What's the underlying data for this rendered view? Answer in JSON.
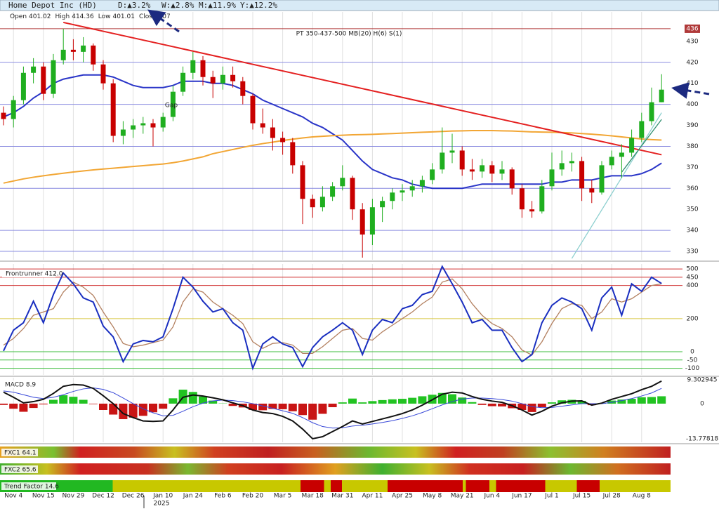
{
  "header": {
    "title": "Home Depot Inc (HD)",
    "changes": [
      "D:▲3.2%",
      "W:▲2.8%",
      "M:▲11.9%",
      "Y:▲12.2%"
    ]
  },
  "strips": [
    "FXC1 64.1",
    "FXC2 65.6",
    "Trend Factor 14.6"
  ],
  "chart_data": [
    {
      "type": "candlestick",
      "categories": [
        null,
        "Nov 4",
        null,
        null,
        "Nov 15",
        null,
        null,
        "Nov 29",
        null,
        null,
        "Dec 12",
        null,
        null,
        "Dec 26",
        null,
        null,
        "Jan 10",
        null,
        null,
        "Jan 24",
        null,
        null,
        "Feb 6",
        null,
        null,
        "Feb 20",
        null,
        null,
        "Mar 5",
        null,
        null,
        "Mar 18",
        null,
        null,
        "Mar 31",
        null,
        null,
        "Apr 11",
        null,
        null,
        "Apr 25",
        null,
        null,
        "May 8",
        null,
        null,
        "May 21",
        null,
        null,
        "Jun 4",
        null,
        null,
        "Jun 17",
        null,
        null,
        "Jul 1",
        null,
        null,
        "Jul 15",
        null,
        null,
        "Jul 28",
        null,
        null,
        "Aug 8",
        null,
        null
      ],
      "year_label": "2025",
      "ohlc_labels": [
        "Open",
        "High",
        "Low",
        "Close"
      ],
      "open": [
        396,
        393,
        402,
        415,
        418,
        405,
        421,
        426,
        425,
        428,
        419,
        410,
        385,
        388,
        390,
        391,
        389,
        394,
        406,
        415,
        421,
        413,
        410,
        414,
        411,
        404,
        391,
        389,
        384,
        382,
        371,
        355,
        351,
        356,
        361,
        365,
        350,
        338,
        351,
        354,
        358,
        359,
        361,
        364,
        369,
        377,
        378,
        369,
        368,
        371,
        367,
        369,
        360,
        350,
        349,
        361,
        369,
        372,
        373,
        360,
        358,
        371,
        375,
        377,
        384,
        392,
        401.02
      ],
      "high": [
        399,
        404,
        418,
        422,
        420,
        424,
        436,
        431,
        432,
        429,
        421,
        412,
        392,
        393,
        394,
        393,
        396,
        409,
        418,
        425,
        423,
        416,
        418,
        418,
        413,
        405,
        398,
        393,
        387,
        384,
        373,
        357,
        361,
        363,
        371,
        366,
        353,
        355,
        356,
        360,
        362,
        364,
        366,
        372,
        389,
        386,
        380,
        374,
        374,
        373,
        373,
        370,
        362,
        354,
        364,
        377,
        378,
        377,
        375,
        364,
        373,
        378,
        381,
        388,
        396,
        408,
        414.36
      ],
      "low": [
        390,
        389,
        400,
        410,
        402,
        403,
        419,
        421,
        420,
        416,
        407,
        382,
        381,
        384,
        386,
        380,
        387,
        392,
        404,
        412,
        409,
        403,
        407,
        408,
        400,
        388,
        386,
        378,
        376,
        367,
        343,
        346,
        349,
        354,
        359,
        345,
        327,
        333,
        344,
        350,
        354,
        356,
        358,
        362,
        367,
        372,
        366,
        364,
        365,
        363,
        364,
        357,
        346,
        346,
        348,
        359,
        366,
        368,
        354,
        353,
        357,
        369,
        365,
        375,
        382,
        390,
        401.01
      ],
      "close": [
        393,
        402,
        415,
        418,
        405,
        421,
        426,
        425,
        428,
        419,
        410,
        385,
        388,
        390,
        391,
        389,
        394,
        406,
        415,
        421,
        413,
        410,
        414,
        411,
        404,
        391,
        389,
        384,
        382,
        371,
        355,
        351,
        356,
        361,
        365,
        350,
        338,
        351,
        354,
        358,
        359,
        361,
        364,
        369,
        377,
        378,
        369,
        368,
        371,
        367,
        369,
        360,
        350,
        349,
        361,
        369,
        372,
        373,
        360,
        358,
        371,
        375,
        377,
        384,
        392,
        401,
        407
      ],
      "colors": {
        "up": "#1fae1f",
        "down": "#c80000"
      },
      "lines": [
        {
          "color": "#2a35c8",
          "values": [
            394,
            396,
            399,
            403,
            406,
            410,
            412,
            413,
            414,
            414,
            414,
            413,
            411,
            409,
            408,
            408,
            408,
            409,
            411,
            411,
            411,
            410,
            410,
            409,
            407,
            405,
            402,
            400,
            398,
            396,
            394,
            391,
            389,
            386,
            383,
            378,
            373,
            369,
            367,
            365,
            364,
            362,
            361,
            360,
            360,
            360,
            360,
            361,
            362,
            362,
            362,
            362,
            362,
            362,
            362,
            363,
            363,
            364,
            364,
            364,
            365,
            366,
            366,
            366,
            367,
            369,
            372
          ]
        },
        {
          "color": "#f2a634",
          "values": [
            362.5,
            363.5,
            364.5,
            365.3,
            366,
            366.6,
            367.2,
            367.8,
            368.3,
            368.8,
            369.2,
            369.6,
            370,
            370.4,
            370.8,
            371.2,
            371.6,
            372.2,
            373,
            374,
            375,
            376.5,
            377.5,
            378.5,
            379.5,
            380.5,
            381.3,
            382,
            382.8,
            383.4,
            384,
            384.5,
            384.8,
            385.1,
            385.3,
            385.5,
            385.6,
            385.7,
            385.9,
            386.1,
            386.3,
            386.5,
            386.7,
            386.9,
            387.1,
            387.3,
            387.4,
            387.5,
            387.5,
            387.5,
            387.4,
            387.3,
            387.1,
            386.9,
            386.8,
            386.7,
            386.6,
            386.4,
            386.1,
            385.8,
            385.4,
            385,
            384.5,
            384,
            383.5,
            383.2,
            383
          ]
        }
      ],
      "trendlines": [
        {
          "color": "#e42020",
          "from": [
            6,
            439
          ],
          "to": [
            66,
            376
          ]
        },
        {
          "color": "#8ccfcf",
          "from": [
            57,
            326.6
          ],
          "to": [
            66,
            396
          ]
        },
        {
          "color": "#2f8f6f",
          "from": [
            62,
            367.7
          ],
          "to": [
            66,
            392.8
          ]
        }
      ],
      "annotation": "PT 350-437-500 MB(20) H(6) S(1)",
      "gap_label": "Gap",
      "ylim": [
        326,
        444
      ],
      "yticks": [
        330,
        340,
        350,
        360,
        370,
        380,
        390,
        400,
        410,
        420,
        430
      ],
      "hlines": [
        330,
        340,
        360,
        380,
        400,
        420
      ],
      "hline_color": "#8a8ce0",
      "resistance": 436,
      "resistance_color": "#b03a3a"
    },
    {
      "type": "line",
      "title": "Frontrunner 412.0",
      "ylim": [
        -140,
        530
      ],
      "yticks": [
        500,
        450,
        400,
        200,
        0,
        -50,
        -100
      ],
      "level_colors": [
        "#d03030",
        "#d03030",
        "#d03030",
        "#d6c640",
        "#3cbc3c",
        "#3cbc3c",
        "#3cbc3c"
      ],
      "series": [
        {
          "color": "#1a2fc0",
          "values": [
            5,
            130,
            175,
            305,
            175,
            345,
            475,
            410,
            325,
            300,
            155,
            90,
            -60,
            47,
            68,
            60,
            90,
            260,
            450,
            390,
            305,
            240,
            260,
            175,
            130,
            -100,
            47,
            90,
            47,
            25,
            -90,
            25,
            90,
            130,
            175,
            130,
            -17,
            130,
            195,
            175,
            260,
            280,
            345,
            365,
            515,
            410,
            300,
            175,
            195,
            130,
            130,
            25,
            -60,
            -17,
            175,
            280,
            325,
            300,
            260,
            130,
            325,
            390,
            220,
            410,
            365,
            450,
            412
          ]
        },
        {
          "color": "#b38060",
          "values": [
            40,
            80,
            140,
            220,
            240,
            260,
            360,
            420,
            390,
            340,
            240,
            150,
            50,
            30,
            40,
            55,
            70,
            150,
            300,
            380,
            360,
            300,
            260,
            220,
            170,
            60,
            20,
            50,
            55,
            40,
            -10,
            -10,
            30,
            80,
            130,
            140,
            80,
            70,
            120,
            160,
            200,
            240,
            290,
            330,
            420,
            440,
            380,
            290,
            220,
            170,
            140,
            90,
            10,
            -20,
            60,
            170,
            260,
            290,
            280,
            200,
            240,
            320,
            300,
            320,
            360,
            400,
            410
          ]
        }
      ]
    },
    {
      "type": "macd",
      "title": "MACD 8.9",
      "ylim": [
        -15.2,
        10.2
      ],
      "yticks": [
        9.302945,
        0,
        -13.77818
      ],
      "colors": {
        "up": "#22c322",
        "down": "#c81414"
      },
      "histogram": [
        -0.5,
        -2.0,
        -3.2,
        -1.7,
        -0.3,
        1.5,
        3.3,
        2.7,
        1.5,
        -0.2,
        -2.5,
        -4.3,
        -6.1,
        -5.5,
        -4.8,
        -3.4,
        -2.0,
        2.1,
        5.5,
        4.6,
        2.8,
        1.2,
        0.1,
        -0.9,
        -1.5,
        -2.5,
        -2.6,
        -2.1,
        -2.2,
        -3.0,
        -4.5,
        -6.3,
        -4.0,
        -1.4,
        0.5,
        2.0,
        0.5,
        1.0,
        1.4,
        1.7,
        1.9,
        2.3,
        2.9,
        3.5,
        4.2,
        3.7,
        2.4,
        0.6,
        -0.5,
        -1.0,
        -1.1,
        -1.8,
        -2.5,
        -3.3,
        -1.4,
        0.5,
        1.3,
        1.5,
        1.1,
        -0.6,
        0.2,
        1.2,
        1.6,
        1.9,
        2.5,
        2.6,
        2.9
      ],
      "series": [
        {
          "color": "#111111",
          "values": [
            4.5,
            2.5,
            0.3,
            0.8,
            1.7,
            4.0,
            6.8,
            7.5,
            7.3,
            6.0,
            3.1,
            0.0,
            -3.9,
            -5.5,
            -6.8,
            -7.0,
            -6.8,
            -2.5,
            2.5,
            3.4,
            3.0,
            2.3,
            1.5,
            0.3,
            -0.8,
            -2.5,
            -3.5,
            -3.9,
            -5.0,
            -6.8,
            -10.0,
            -13.8,
            -13.0,
            -11.0,
            -9.0,
            -6.8,
            -8.0,
            -7.0,
            -6.0,
            -5.0,
            -3.9,
            -2.5,
            -0.6,
            1.5,
            3.7,
            4.5,
            4.2,
            2.8,
            1.7,
            1.0,
            0.5,
            -0.8,
            -2.5,
            -4.5,
            -3.0,
            -1.0,
            0.3,
            1.0,
            1.1,
            -0.6,
            0.2,
            1.7,
            2.8,
            3.9,
            5.5,
            6.8,
            8.9
          ]
        },
        {
          "color": "#3848d8",
          "values": [
            5,
            4.5,
            3.5,
            2.5,
            2.0,
            2.5,
            3.5,
            4.8,
            5.8,
            6.2,
            5.6,
            4.3,
            2.2,
            0.0,
            -2.0,
            -3.6,
            -4.8,
            -4.6,
            -3.0,
            -1.2,
            0.2,
            1.1,
            1.4,
            1.2,
            0.7,
            0.0,
            -0.9,
            -1.8,
            -2.8,
            -3.8,
            -5.5,
            -7.5,
            -9.0,
            -9.6,
            -9.5,
            -8.8,
            -8.5,
            -8.0,
            -7.4,
            -6.7,
            -5.8,
            -4.8,
            -3.5,
            -2.0,
            -0.5,
            0.8,
            1.8,
            2.2,
            2.2,
            2.0,
            1.6,
            1.0,
            0.0,
            -1.2,
            -1.6,
            -1.5,
            -1.0,
            -0.5,
            0.0,
            0.0,
            0.0,
            0.5,
            1.2,
            2.0,
            3.0,
            4.2,
            6.0
          ]
        }
      ]
    }
  ]
}
